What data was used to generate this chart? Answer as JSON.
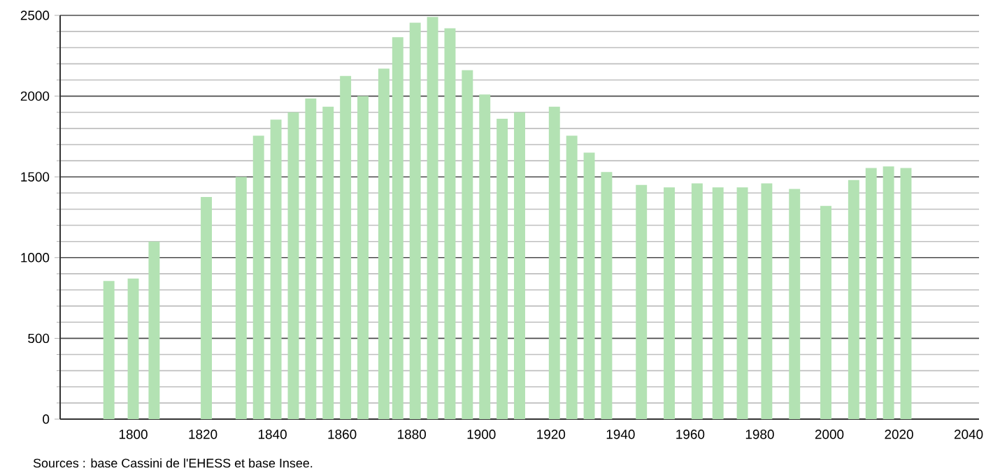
{
  "chart_data": {
    "type": "bar",
    "color": "#b3e2b3",
    "x": [
      1793,
      1800,
      1806,
      1821,
      1831,
      1836,
      1841,
      1846,
      1851,
      1856,
      1861,
      1866,
      1872,
      1876,
      1881,
      1886,
      1891,
      1896,
      1901,
      1906,
      1911,
      1921,
      1926,
      1931,
      1936,
      1946,
      1954,
      1962,
      1968,
      1975,
      1982,
      1990,
      1999,
      2007,
      2012,
      2017,
      2022
    ],
    "values": [
      855,
      870,
      1100,
      1375,
      1500,
      1755,
      1855,
      1900,
      1985,
      1935,
      2125,
      2000,
      2170,
      2365,
      2455,
      2490,
      2420,
      2160,
      2010,
      1860,
      1900,
      1935,
      1755,
      1650,
      1530,
      1450,
      1435,
      1460,
      1435,
      1435,
      1460,
      1425,
      1320,
      1480,
      1555,
      1565,
      1555
    ],
    "xlim": [
      1779,
      2043
    ],
    "xticks": [
      1800,
      1820,
      1840,
      1860,
      1880,
      1900,
      1920,
      1940,
      1960,
      1980,
      2000,
      2020,
      2040
    ],
    "ylim": [
      0,
      2500
    ],
    "yticks": [
      0,
      500,
      1000,
      1500,
      2000,
      2500
    ],
    "grid": "y",
    "annotations": [
      "Sources : base Cassini de l'EHESS et base Insee."
    ]
  }
}
